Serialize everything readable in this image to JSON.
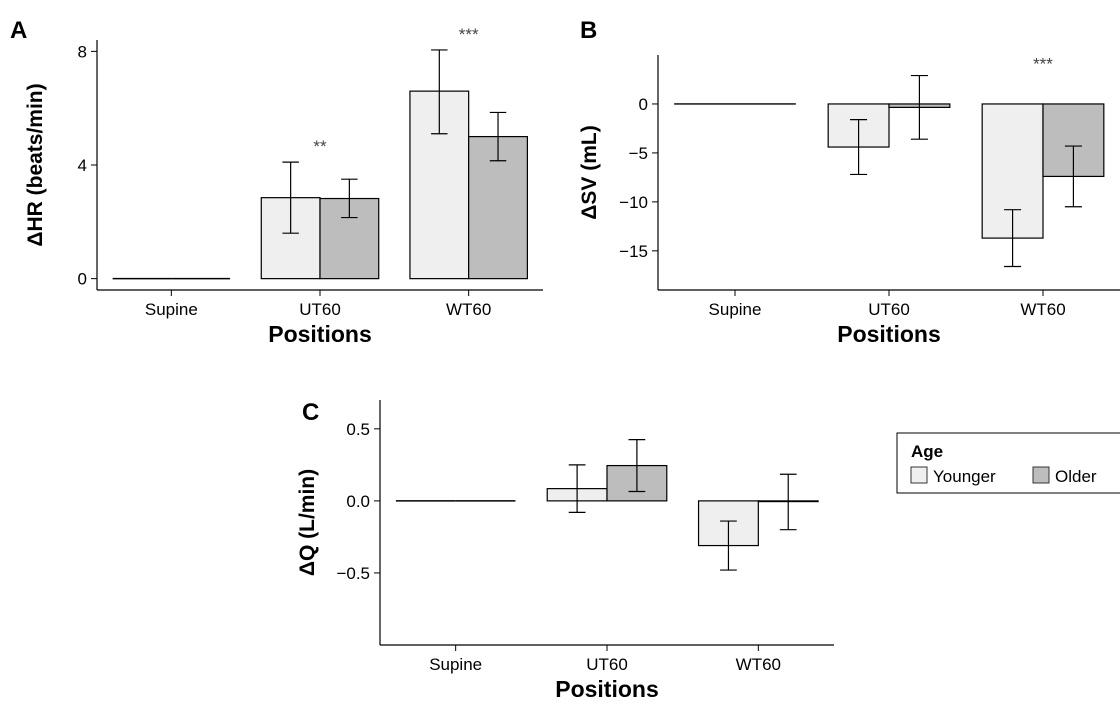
{
  "legend": {
    "title": "Age",
    "items": [
      {
        "label": "Younger",
        "color": "#efefef"
      },
      {
        "label": "Older",
        "color": "#bdbdbd"
      }
    ],
    "placement": "right"
  },
  "chart_data": [
    {
      "panel": "A",
      "type": "bar",
      "categories": [
        "Supine",
        "UT60",
        "WT60"
      ],
      "xlabel": "Positions",
      "ylabel": "ΔHR (beats/min)",
      "ylim": [
        -0.4,
        8.4
      ],
      "yticks": [
        0,
        4,
        8
      ],
      "series": [
        {
          "name": "Younger",
          "values": [
            0,
            2.85,
            6.6
          ],
          "err_low": [
            0,
            1.6,
            5.1
          ],
          "err_high": [
            0,
            4.1,
            8.05
          ]
        },
        {
          "name": "Older",
          "values": [
            0,
            2.82,
            5.0
          ],
          "err_low": [
            0,
            2.15,
            4.15
          ],
          "err_high": [
            0,
            3.5,
            5.85
          ]
        }
      ],
      "annotations": [
        {
          "category": "UT60",
          "text": "**"
        },
        {
          "category": "WT60",
          "text": "***"
        }
      ],
      "grid": false
    },
    {
      "panel": "B",
      "type": "bar",
      "categories": [
        "Supine",
        "UT60",
        "WT60"
      ],
      "xlabel": "Positions",
      "ylabel": "ΔSV (mL)",
      "ylim": [
        -19,
        5
      ],
      "yticks": [
        0,
        -5,
        -10,
        -15
      ],
      "series": [
        {
          "name": "Younger",
          "values": [
            0,
            -4.4,
            -13.7
          ],
          "err_low": [
            0,
            -7.2,
            -16.6
          ],
          "err_high": [
            0,
            -1.6,
            -10.8
          ]
        },
        {
          "name": "Older",
          "values": [
            0,
            -0.35,
            -7.4
          ],
          "err_low": [
            0,
            -3.6,
            -10.5
          ],
          "err_high": [
            0,
            2.9,
            -4.3
          ]
        }
      ],
      "annotations": [
        {
          "category": "WT60",
          "text": "***"
        }
      ],
      "grid": false
    },
    {
      "panel": "C",
      "type": "bar",
      "categories": [
        "Supine",
        "UT60",
        "WT60"
      ],
      "xlabel": "Positions",
      "ylabel": "ΔQ (L/min)",
      "ylim": [
        -1.0,
        0.7
      ],
      "yticks": [
        0.5,
        0.0,
        -0.5
      ],
      "series": [
        {
          "name": "Younger",
          "values": [
            0,
            0.085,
            -0.31
          ],
          "err_low": [
            0,
            -0.08,
            -0.48
          ],
          "err_high": [
            0,
            0.25,
            -0.14
          ]
        },
        {
          "name": "Older",
          "values": [
            0,
            0.245,
            -0.005
          ],
          "err_low": [
            0,
            0.065,
            -0.2
          ],
          "err_high": [
            0,
            0.425,
            0.185
          ]
        }
      ],
      "annotations": [],
      "grid": false
    }
  ]
}
